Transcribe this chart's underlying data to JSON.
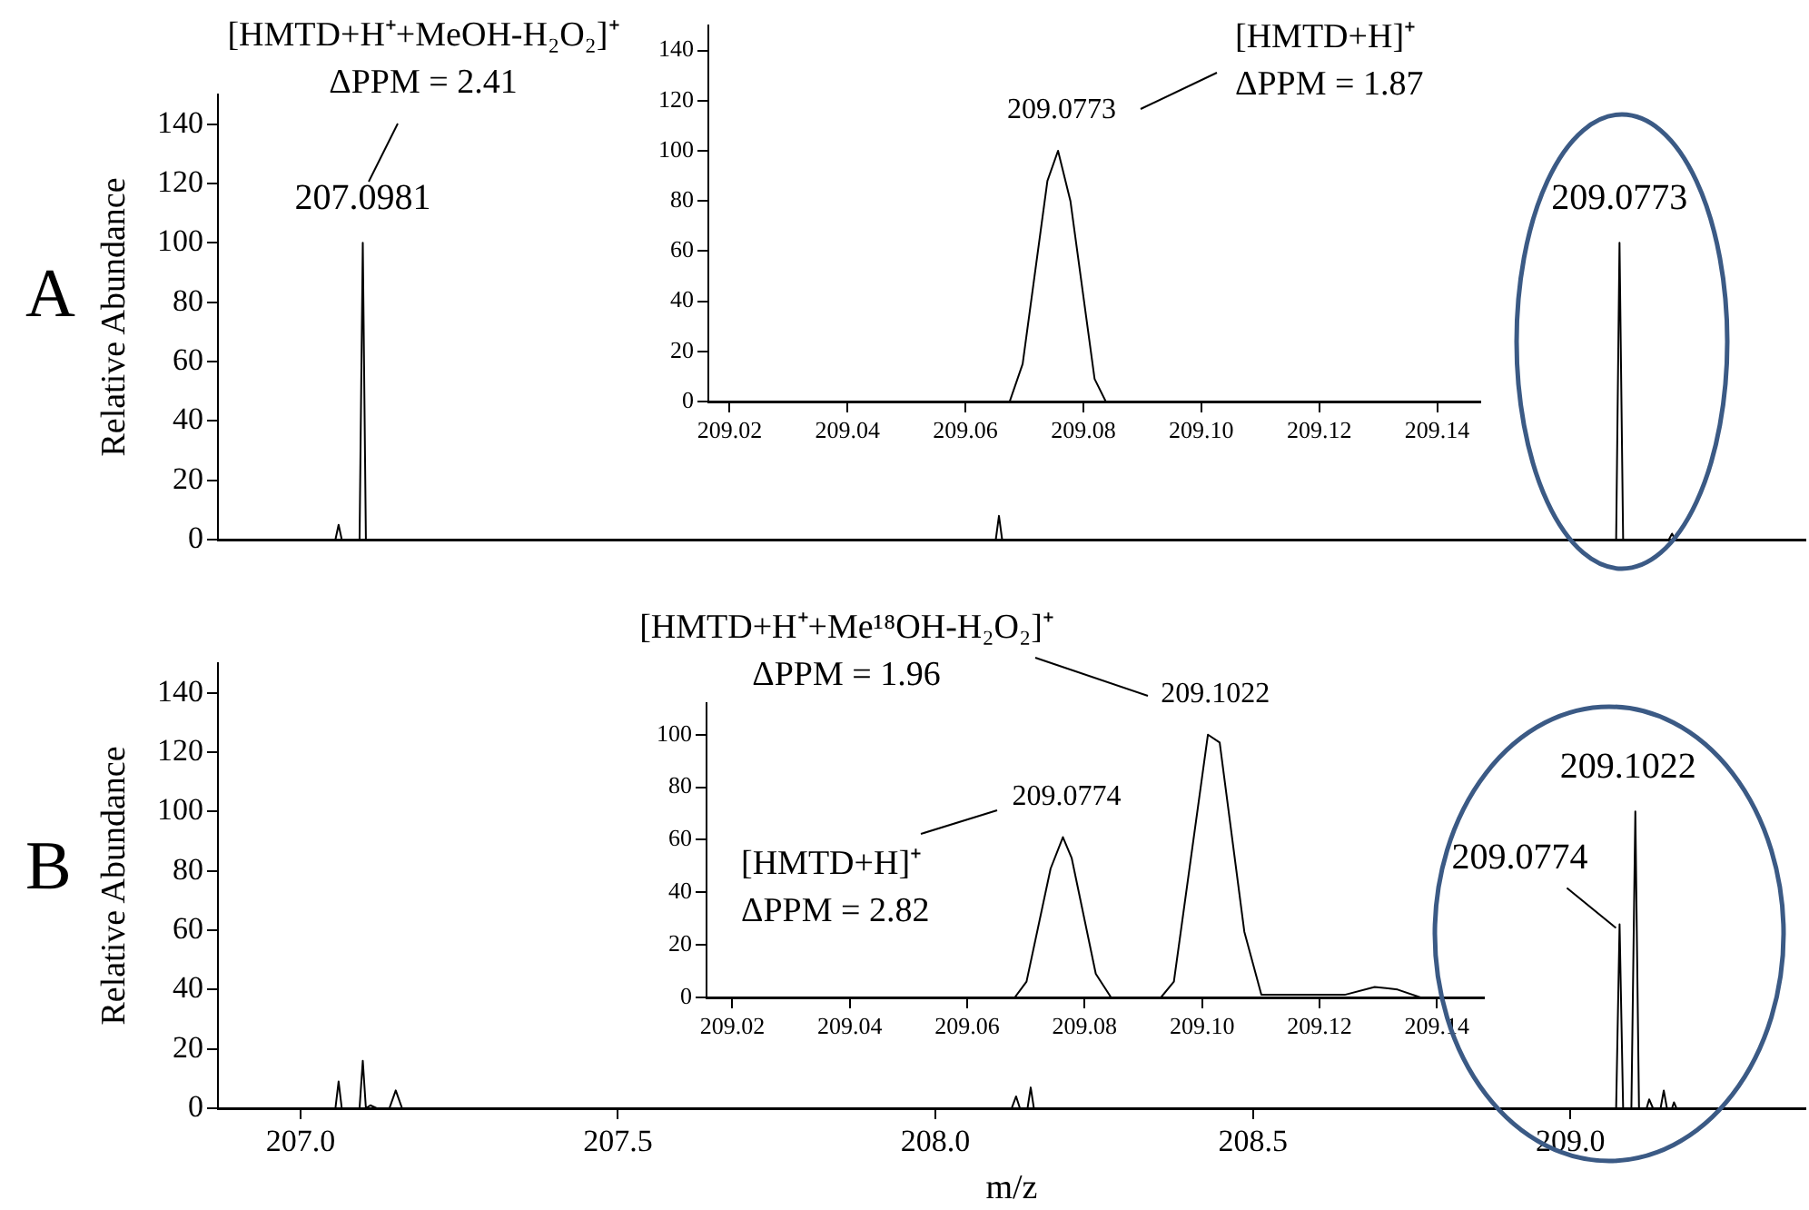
{
  "chart_data": [
    {
      "type": "line",
      "title": "A",
      "ylabel": "Relative Abundance",
      "color": "#000000",
      "marker": "none",
      "line_style": "solid",
      "grid": false,
      "tick_labels": "y",
      "x": [
        206.87,
        207.055,
        207.06,
        207.065,
        207.093,
        207.0981,
        207.103,
        208.095,
        208.1,
        208.105,
        209.072,
        209.0773,
        209.083,
        209.155,
        209.16,
        209.165,
        209.37
      ],
      "values": [
        0,
        0,
        5,
        0,
        0,
        100,
        0,
        0,
        8,
        0,
        0,
        100,
        0,
        0,
        2,
        0,
        0
      ],
      "xlim": [
        206.87,
        209.37
      ],
      "ylim": [
        0,
        150
      ],
      "yticks": [
        0,
        20,
        40,
        60,
        80,
        100,
        120,
        140
      ],
      "annotations": [
        "[HMTD+H⁺+MeOH-H₂O₂]⁺\nΔPPM = 2.41",
        {
          "text": "207.0981",
          "x": 207.0981,
          "y": 100
        },
        {
          "text": "209.0773",
          "x": 209.0773,
          "y": 100
        }
      ]
    },
    {
      "type": "line",
      "color": "#000000",
      "marker": "none",
      "line_style": "solid",
      "grid": false,
      "x": [
        209.0164,
        209.0675,
        209.0697,
        209.0739,
        209.0757,
        209.0778,
        209.0819,
        209.0838,
        209.1473
      ],
      "values": [
        0,
        0,
        15,
        88,
        100,
        80,
        9,
        0,
        0
      ],
      "xlim": [
        209.0164,
        209.1473
      ],
      "xticks": [
        209.02,
        209.04,
        209.06,
        209.08,
        {
          "value": 209.1,
          "label": "209.10"
        },
        209.12,
        209.14
      ],
      "ylim": [
        0,
        150
      ],
      "yticks": [
        0,
        20,
        40,
        60,
        80,
        100,
        120,
        140
      ],
      "annotations": [
        "[HMTD+H]⁺\nΔPPM = 1.87",
        {
          "text": "209.0773",
          "x": 209.0757,
          "y": 100
        }
      ]
    },
    {
      "type": "line",
      "title": "B",
      "ylabel": "Relative Abundance",
      "xlabel": "m/z",
      "color": "#000000",
      "marker": "none",
      "line_style": "solid",
      "grid": false,
      "x": [
        206.87,
        207.055,
        207.06,
        207.065,
        207.093,
        207.0981,
        207.103,
        207.11,
        207.12,
        207.14,
        207.15,
        207.16,
        208.12,
        208.127,
        208.133,
        208.145,
        208.15,
        208.155,
        208.165,
        209.072,
        209.0774,
        209.083,
        209.096,
        209.1022,
        209.108,
        209.12,
        209.124,
        209.13,
        209.142,
        209.147,
        209.152,
        209.16,
        209.163,
        209.167,
        209.37
      ],
      "values": [
        0,
        0,
        9,
        0,
        0,
        16,
        0,
        1,
        0,
        0,
        6,
        0,
        0,
        4,
        0,
        0,
        7,
        0,
        0,
        0,
        62,
        0,
        0,
        100,
        0,
        0,
        3,
        0,
        0,
        6,
        0,
        0,
        2,
        0,
        0
      ],
      "xlim": [
        206.87,
        209.37
      ],
      "xticks": [
        {
          "value": 207,
          "label": "207.0"
        },
        207.5,
        {
          "value": 208,
          "label": "208.0"
        },
        208.5,
        {
          "value": 209,
          "label": "209.0"
        }
      ],
      "ylim": [
        0,
        150
      ],
      "yticks": [
        0,
        20,
        40,
        60,
        80,
        100,
        120,
        140
      ],
      "annotations": [
        {
          "text": "209.0774",
          "x": 209.0774,
          "y": 62
        },
        {
          "text": "209.1022",
          "x": 209.1022,
          "y": 100
        }
      ]
    },
    {
      "type": "line",
      "color": "#000000",
      "marker": "none",
      "line_style": "solid",
      "grid": false,
      "x": [
        209.0156,
        209.0681,
        209.0701,
        209.0742,
        209.0763,
        209.0778,
        209.0819,
        209.0845,
        209.093,
        209.0952,
        209.101,
        209.103,
        209.1072,
        209.1101,
        209.112,
        209.1204,
        209.1243,
        209.1294,
        209.1333,
        209.1372,
        209.148
      ],
      "values": [
        0,
        0,
        6,
        49,
        61,
        53,
        9,
        0,
        0,
        6,
        100,
        97,
        25,
        1,
        1,
        1,
        1,
        4,
        3,
        0,
        0
      ],
      "xlim": [
        209.0156,
        209.148
      ],
      "xticks": [
        209.02,
        209.04,
        209.06,
        209.08,
        {
          "value": 209.1,
          "label": "209.10"
        },
        209.12,
        209.14
      ],
      "ylim": [
        0,
        112
      ],
      "yticks": [
        0,
        20,
        40,
        60,
        80,
        100
      ],
      "annotations": [
        "[HMTD+H⁺+Me¹⁸OH-H₂O₂]⁺\nΔPPM = 1.96",
        {
          "text": "209.1022",
          "x": 209.101,
          "y": 100
        },
        "[HMTD+H]⁺\nΔPPM = 2.82",
        {
          "text": "209.0774",
          "x": 209.0763,
          "y": 61
        }
      ]
    }
  ]
}
